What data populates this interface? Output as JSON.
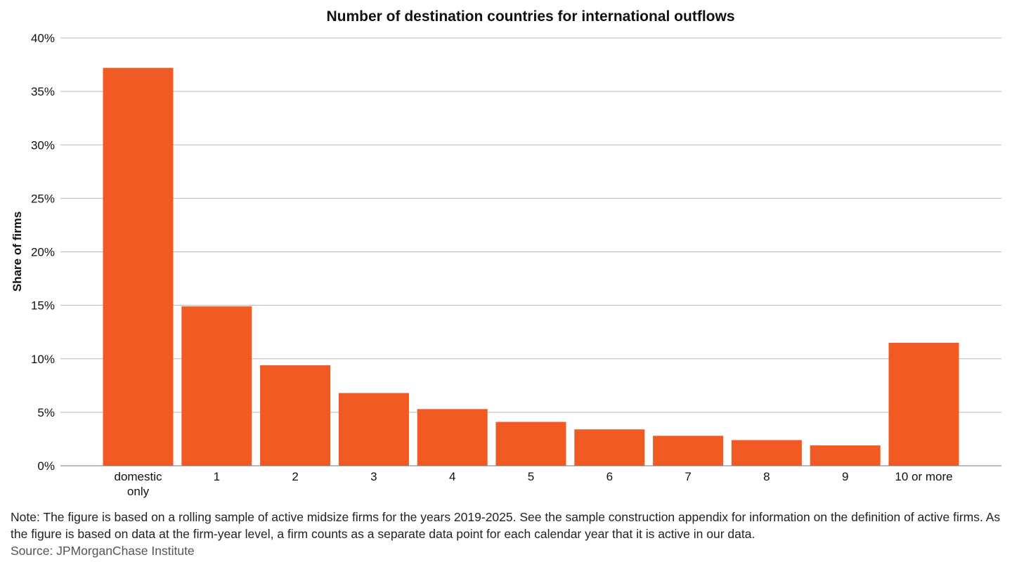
{
  "chart_data": {
    "type": "bar",
    "title": "Number of destination countries for international outflows",
    "xlabel": "",
    "ylabel": "Share of firms",
    "ylim": [
      0,
      40
    ],
    "yticks": [
      0,
      5,
      10,
      15,
      20,
      25,
      30,
      35,
      40
    ],
    "ytick_labels": [
      "0%",
      "5%",
      "10%",
      "15%",
      "20%",
      "25%",
      "30%",
      "35%",
      "40%"
    ],
    "categories": [
      [
        "domestic",
        "only"
      ],
      [
        "1"
      ],
      [
        "2"
      ],
      [
        "3"
      ],
      [
        "4"
      ],
      [
        "5"
      ],
      [
        "6"
      ],
      [
        "7"
      ],
      [
        "8"
      ],
      [
        "9"
      ],
      [
        "10 or more"
      ]
    ],
    "values": [
      37.2,
      14.9,
      9.4,
      6.8,
      5.3,
      4.1,
      3.4,
      2.8,
      2.4,
      1.9,
      11.5
    ],
    "grid": true,
    "bar_color": "#F15A22"
  },
  "note": "Note: The figure is based on a rolling sample of active midsize firms for the years 2019-2025. See the sample construction appendix for information on the definition of active firms. As the figure is based on data at the firm-year level, a firm counts as a separate data point for each calendar year that it is active in our data.",
  "source": "Source: JPMorganChase Institute"
}
